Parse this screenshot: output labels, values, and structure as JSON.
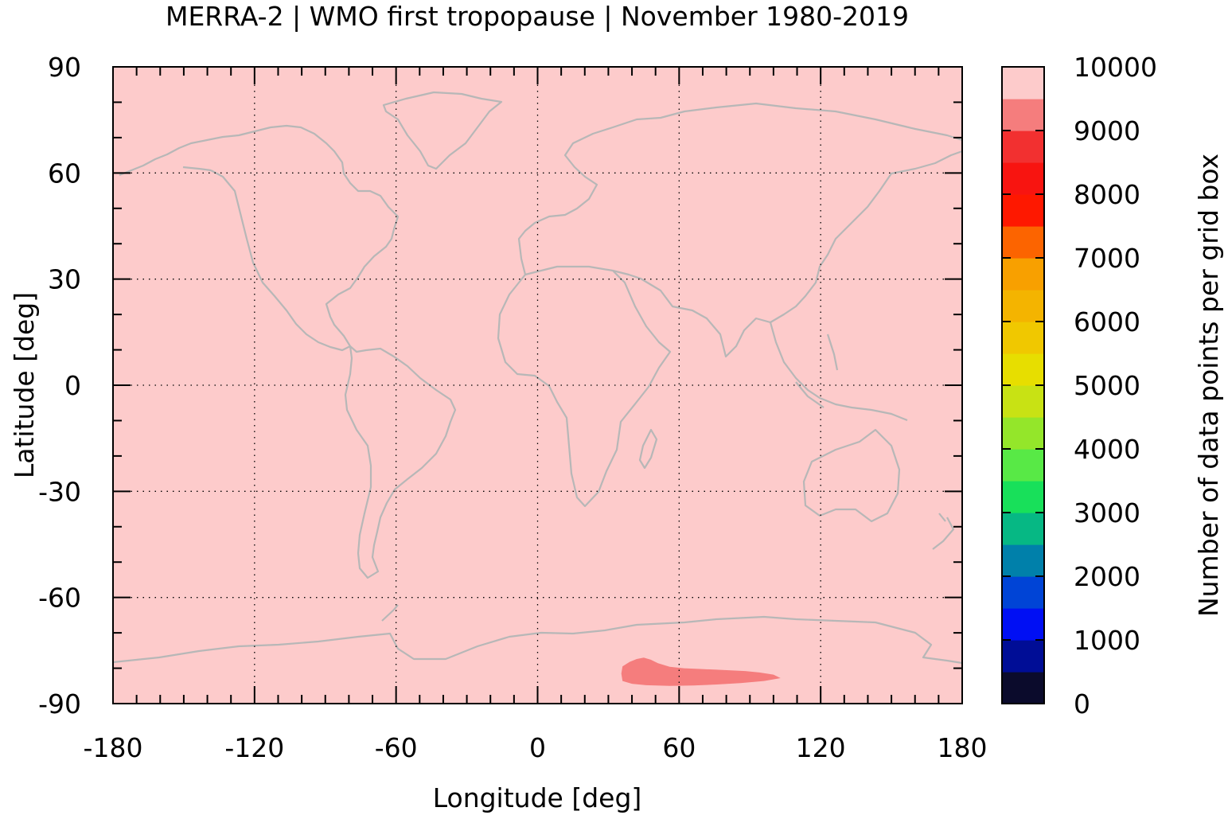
{
  "chart_data": {
    "type": "heatmap",
    "title": "MERRA-2 | WMO first tropopause | November 1980-2019",
    "xlabel": "Longitude [deg]",
    "ylabel": "Latitude [deg]",
    "xlim": [
      -180,
      180
    ],
    "ylim": [
      -90,
      90
    ],
    "x_ticks": [
      -180,
      -120,
      -60,
      0,
      60,
      120,
      180
    ],
    "x_tick_labels": [
      "-180",
      "-120",
      "-60",
      "0",
      "60",
      "120",
      "180"
    ],
    "y_ticks": [
      90,
      60,
      30,
      0,
      -30,
      -60,
      -90
    ],
    "y_tick_labels": [
      "90",
      "60",
      "30",
      "0",
      "-30",
      "-60",
      "-90"
    ],
    "grid": true,
    "background_value_range": [
      9500,
      10000
    ],
    "regions": [
      {
        "description_value_range": [
          9000,
          9500
        ],
        "polygon_lon_lat": [
          [
            36,
            -79.5
          ],
          [
            39,
            -78.2
          ],
          [
            42,
            -77.4
          ],
          [
            45,
            -77.0
          ],
          [
            48,
            -77.6
          ],
          [
            51,
            -78.6
          ],
          [
            56,
            -79.6
          ],
          [
            62,
            -80.0
          ],
          [
            68,
            -80.2
          ],
          [
            75,
            -80.4
          ],
          [
            82,
            -80.6
          ],
          [
            88,
            -80.8
          ],
          [
            94,
            -81.2
          ],
          [
            100,
            -81.8
          ],
          [
            103,
            -82.8
          ],
          [
            96,
            -83.6
          ],
          [
            86,
            -84.2
          ],
          [
            76,
            -84.6
          ],
          [
            66,
            -84.9
          ],
          [
            56,
            -85.0
          ],
          [
            46,
            -84.8
          ],
          [
            40,
            -84.4
          ],
          [
            36,
            -83.6
          ],
          [
            35.5,
            -81.5
          ]
        ]
      }
    ],
    "colorbar": {
      "label": "Number of data points per grid box",
      "range": [
        0,
        10000
      ],
      "step": 500,
      "tick_values": [
        0,
        1000,
        2000,
        3000,
        4000,
        5000,
        6000,
        7000,
        8000,
        9000,
        10000
      ],
      "tick_labels": [
        "0",
        "1000",
        "2000",
        "3000",
        "4000",
        "5000",
        "6000",
        "7000",
        "8000",
        "9000",
        "10000"
      ],
      "colors": [
        "#0b0b2c",
        "#000d96",
        "#000ff4",
        "#0044d6",
        "#0080aa",
        "#06b884",
        "#18e05a",
        "#58e946",
        "#94e62a",
        "#c8e214",
        "#e7de00",
        "#f0c800",
        "#f4b400",
        "#f8a000",
        "#fc6400",
        "#fe1800",
        "#f81410",
        "#f23030",
        "#f57d7d",
        "#fdcbcb"
      ]
    }
  }
}
